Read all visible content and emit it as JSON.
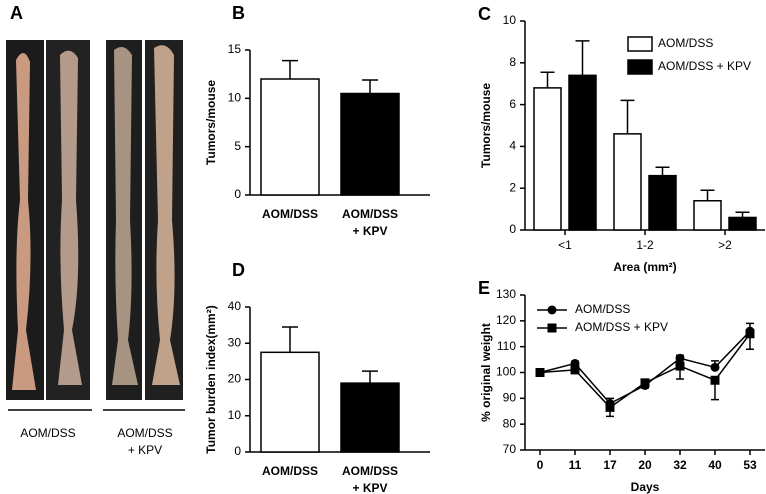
{
  "photo_panel": {
    "label": "A",
    "captions": [
      "AOM/DSS",
      "AOM/DSS\n+ KPV"
    ]
  },
  "chart_data": [
    {
      "type": "bar",
      "panel": "B",
      "ylabel": "Tumors/mouse",
      "categories": [
        "AOM/DSS",
        "AOM/DSS\n+ KPV"
      ],
      "values": [
        12,
        10.5
      ],
      "errors": [
        1.9,
        1.4
      ],
      "colors": [
        "#ffffff",
        "#000000"
      ],
      "ylim": [
        0,
        15
      ],
      "yticks": [
        0,
        5,
        10,
        15
      ]
    },
    {
      "type": "grouped_bar",
      "panel": "C",
      "ylabel": "Tumors/mouse",
      "xlabel": "Area (mm²)",
      "categories": [
        "<1",
        "1-2",
        ">2"
      ],
      "legend": "top-right",
      "series": [
        {
          "name": "AOM/DSS",
          "color": "#ffffff",
          "values": [
            6.8,
            4.6,
            1.4
          ],
          "errors": [
            0.75,
            1.6,
            0.5
          ]
        },
        {
          "name": "AOM/DSS + KPV",
          "color": "#000000",
          "values": [
            7.4,
            2.6,
            0.6
          ],
          "errors": [
            1.65,
            0.4,
            0.25
          ]
        }
      ],
      "ylim": [
        0,
        10
      ],
      "yticks": [
        0,
        2,
        4,
        6,
        8,
        10
      ]
    },
    {
      "type": "bar",
      "panel": "D",
      "ylabel": "Tumor burden index(mm²)",
      "categories": [
        "AOM/DSS",
        "AOM/DSS\n+ KPV"
      ],
      "values": [
        27.5,
        19
      ],
      "errors": [
        7,
        3.3
      ],
      "colors": [
        "#ffffff",
        "#000000"
      ],
      "ylim": [
        0,
        40
      ],
      "yticks": [
        0,
        10,
        20,
        30,
        40
      ]
    },
    {
      "type": "line",
      "panel": "E",
      "ylabel": "% original weight",
      "xlabel": "Days",
      "categories": [
        "0",
        "11",
        "17",
        "20",
        "32",
        "40",
        "53"
      ],
      "legend": "top-left",
      "series": [
        {
          "name": "AOM/DSS",
          "color": "#000000",
          "marker": "circle",
          "values": [
            100,
            103.5,
            88,
            95,
            105.5,
            102,
            116
          ],
          "errors": [
            0.5,
            0.8,
            2,
            1.5,
            1.2,
            2.5,
            3
          ]
        },
        {
          "name": "AOM/DSS + KPV",
          "color": "#000000",
          "marker": "square",
          "values": [
            100,
            101,
            86.5,
            96,
            102.5,
            97,
            115
          ],
          "errors": [
            0.5,
            0.8,
            3.5,
            2,
            5,
            7.5,
            6
          ]
        }
      ],
      "ylim": [
        70,
        130
      ],
      "yticks": [
        70,
        80,
        90,
        100,
        110,
        120,
        130
      ]
    }
  ]
}
